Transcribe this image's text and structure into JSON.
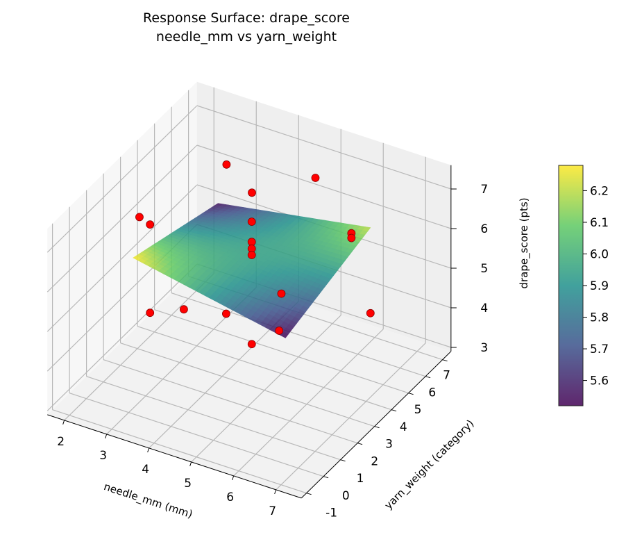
{
  "chart_data": {
    "type": "surface3d",
    "title": "Response Surface: drape_score",
    "subtitle": "needle_mm vs yarn_weight",
    "xlabel": "needle_mm (mm)",
    "ylabel": "yarn_weight (category)",
    "zlabel": "drape_score (pts)",
    "xlim": [
      1.6,
      7.6
    ],
    "ylim": [
      -1.3,
      7.5
    ],
    "zlim": [
      2.9,
      7.6
    ],
    "xticks": [
      2,
      3,
      4,
      5,
      6,
      7
    ],
    "yticks": [
      -1,
      0,
      1,
      2,
      3,
      4,
      5,
      6,
      7
    ],
    "zticks": [
      3,
      4,
      5,
      6,
      7
    ],
    "grid": true,
    "surface": {
      "colormap": "viridis",
      "x_range": [
        2.7,
        6.3
      ],
      "y_range": [
        1,
        6
      ],
      "z_corners": {
        "xmin_ymin": 6.28,
        "xmin_ymax": 5.55,
        "xmax_ymin": 5.52,
        "xmax_ymax": 6.2
      }
    },
    "colorbar": {
      "min": 5.52,
      "max": 6.28,
      "ticks": [
        5.6,
        5.7,
        5.8,
        5.9,
        6.0,
        6.1,
        6.2
      ],
      "tick_labels": [
        "5.6",
        "5.7",
        "5.8",
        "5.9",
        "6.0",
        "6.1",
        "6.2"
      ]
    },
    "points": {
      "color": "#ff0000",
      "x": [
        2.9,
        3.5,
        5.0,
        2.45,
        2.7,
        4.5,
        4.5,
        4.5,
        4.5,
        5.85,
        5.85,
        5.2,
        2.7,
        3.9,
        4.9,
        6.15,
        6.3,
        4.5
      ],
      "y": [
        6,
        6,
        6,
        2,
        2,
        3.5,
        3.5,
        3.5,
        3.5,
        6,
        6,
        3.5,
        2,
        1,
        1,
        1,
        6,
        3.5
      ],
      "z": [
        6.6,
        6.1,
        7.0,
        6.8,
        6.7,
        6.77,
        6.26,
        6.09,
        5.93,
        5.9,
        5.78,
        5.2,
        4.47,
        5.4,
        5.64,
        5.65,
        4.04,
        3.68
      ]
    }
  }
}
